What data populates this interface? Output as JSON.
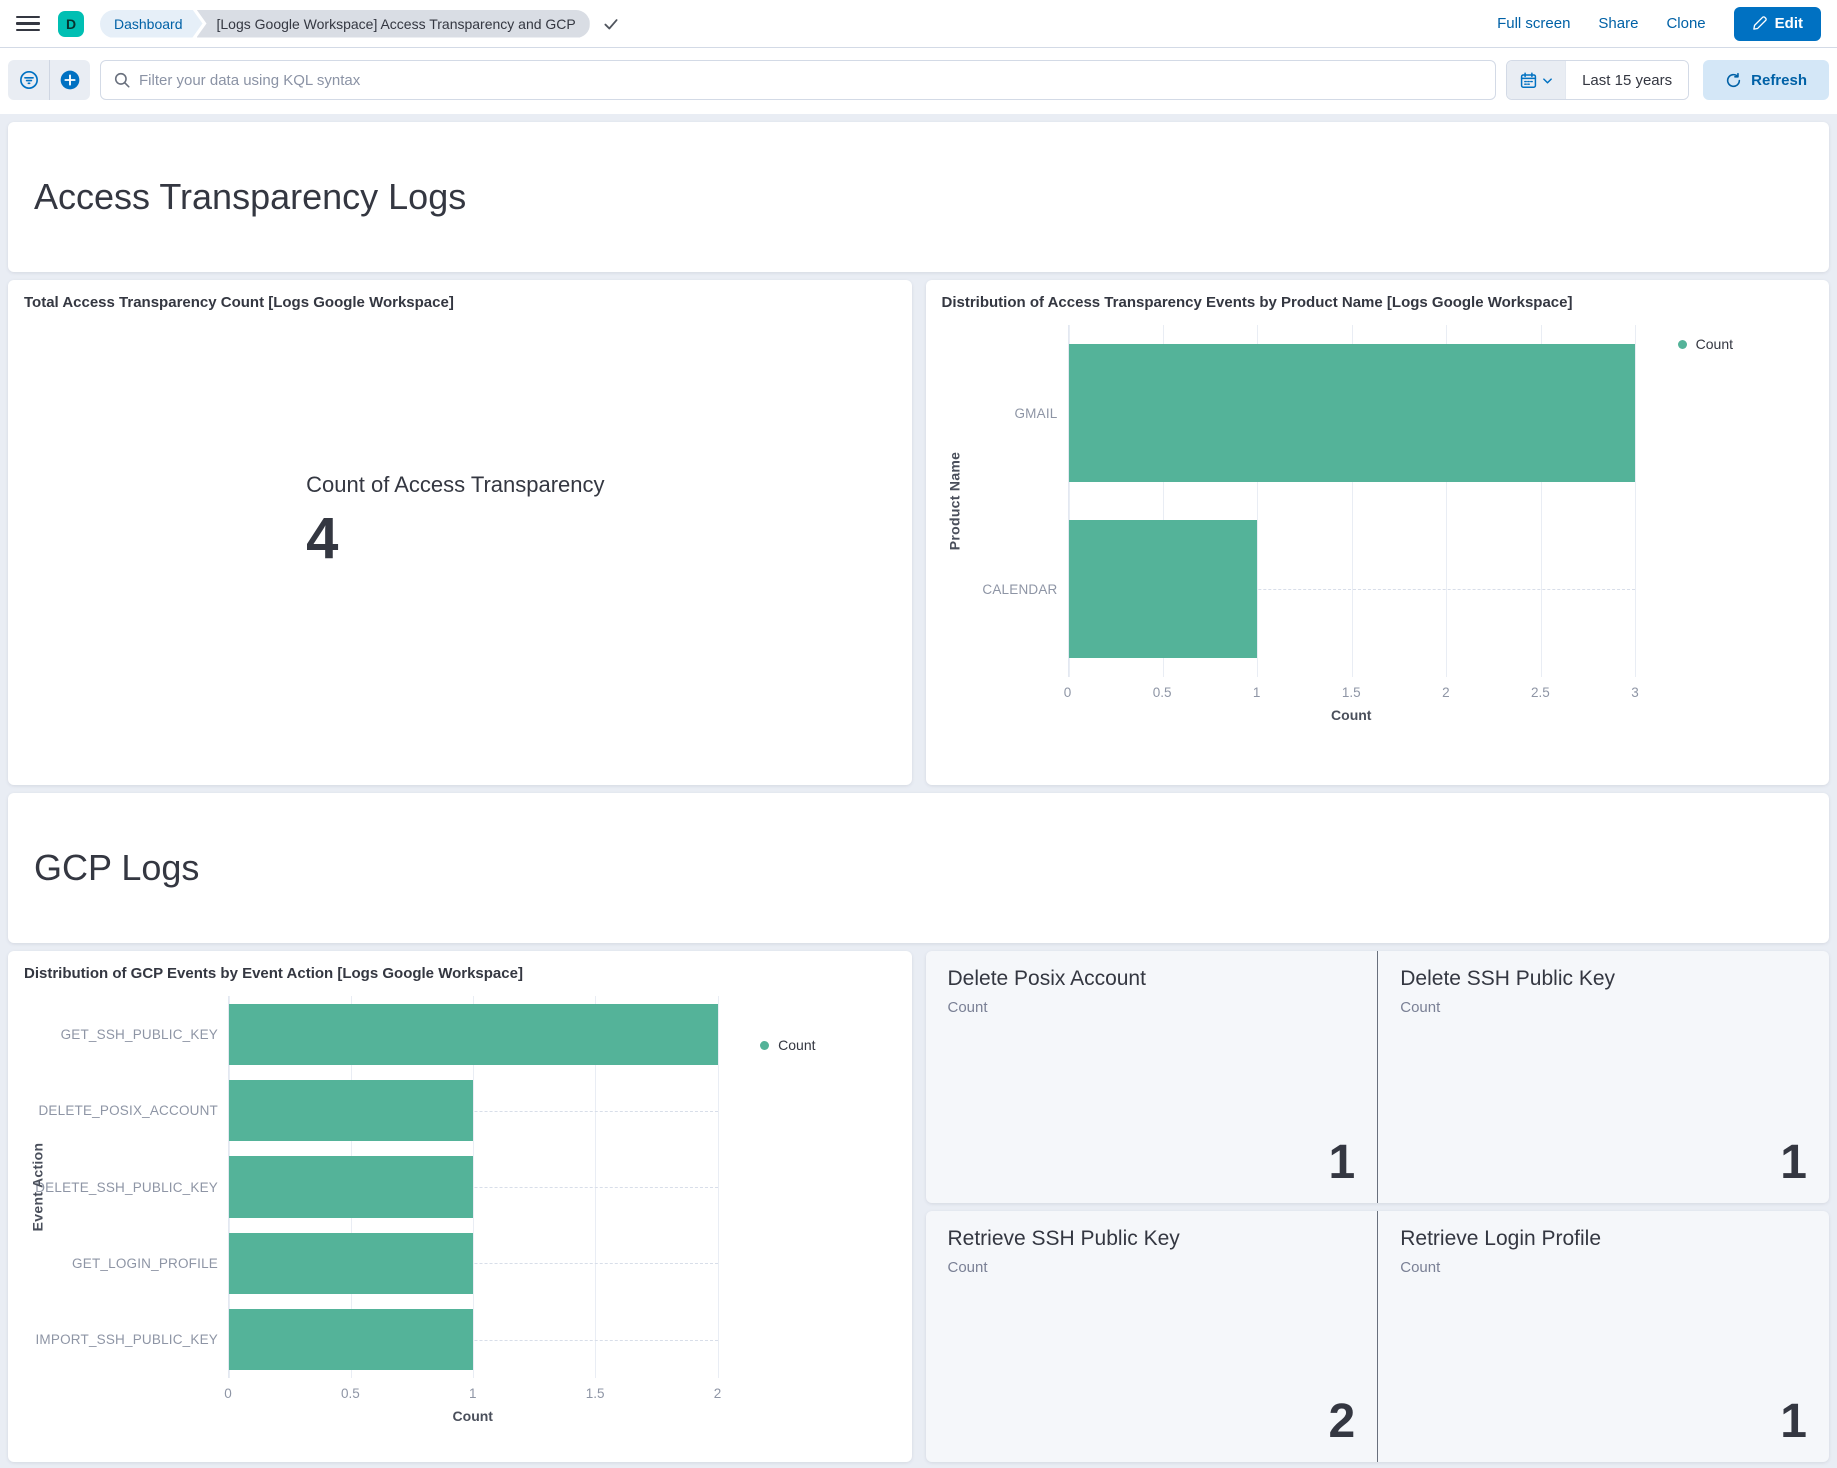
{
  "header": {
    "logo_letter": "D",
    "breadcrumbs": [
      {
        "label": "Dashboard"
      },
      {
        "label": "[Logs Google Workspace] Access Transparency and GCP"
      }
    ],
    "actions": {
      "full_screen": "Full screen",
      "share": "Share",
      "clone": "Clone"
    },
    "edit_label": "Edit"
  },
  "query_bar": {
    "placeholder": "Filter your data using KQL syntax",
    "time_range": "Last 15 years",
    "refresh_label": "Refresh"
  },
  "sections": [
    {
      "title": "Access Transparency Logs"
    },
    {
      "title": "GCP Logs"
    }
  ],
  "panels": {
    "metric_total": {
      "title": "Total Access Transparency Count [Logs Google Workspace]",
      "label": "Count of Access Transparency",
      "value": "4"
    },
    "metric_panels": [
      {
        "title": "Delete Posix Account",
        "subtitle": "Count",
        "value": "1"
      },
      {
        "title": "Delete SSH Public Key",
        "subtitle": "Count",
        "value": "1"
      },
      {
        "title": "Retrieve SSH Public Key",
        "subtitle": "Count",
        "value": "2"
      },
      {
        "title": "Retrieve Login Profile",
        "subtitle": "Count",
        "value": "1"
      }
    ]
  },
  "chart_data": [
    {
      "type": "bar",
      "orientation": "horizontal",
      "title": "Distribution of Access Transparency Events by Product Name [Logs Google Workspace]",
      "categories": [
        "GMAIL",
        "CALENDAR"
      ],
      "values": [
        3,
        1
      ],
      "xlabel": "Count",
      "ylabel": "Product Name",
      "xlim": [
        0,
        3
      ],
      "xticks": [
        "0",
        "0.5",
        "1",
        "1.5",
        "2",
        "2.5",
        "3"
      ],
      "legend": {
        "label": "Count",
        "position": "right"
      },
      "bar_color": "#54B399",
      "grid": true
    },
    {
      "type": "bar",
      "orientation": "horizontal",
      "title": "Distribution of GCP Events by Event Action [Logs Google Workspace]",
      "categories": [
        "GET_SSH_PUBLIC_KEY",
        "DELETE_POSIX_ACCOUNT",
        "DELETE_SSH_PUBLIC_KEY",
        "GET_LOGIN_PROFILE",
        "IMPORT_SSH_PUBLIC_KEY"
      ],
      "values": [
        2,
        1,
        1,
        1,
        1
      ],
      "xlabel": "Count",
      "ylabel": "Event Action",
      "xlim": [
        0,
        2
      ],
      "xticks": [
        "0",
        "0.5",
        "1",
        "1.5",
        "2"
      ],
      "legend": {
        "label": "Count",
        "position": "right"
      },
      "bar_color": "#54B399",
      "grid": true
    }
  ],
  "icons": {
    "menu": "hamburger",
    "check": "✓",
    "edit": "pencil",
    "filter": "filter-in-circle",
    "add": "plus-in-circle",
    "search": "magnifier",
    "calendar": "calendar",
    "chevron_down": "⌄",
    "refresh": "⟳",
    "legend_dot": "●"
  },
  "colors": {
    "bar_teal": "#54B399",
    "avatar_teal": "#00BFB3",
    "accent_blue": "#0061A6",
    "primary_button_blue": "#0071C2",
    "text_dark": "#343741",
    "page_background": "#E9EDF4"
  }
}
